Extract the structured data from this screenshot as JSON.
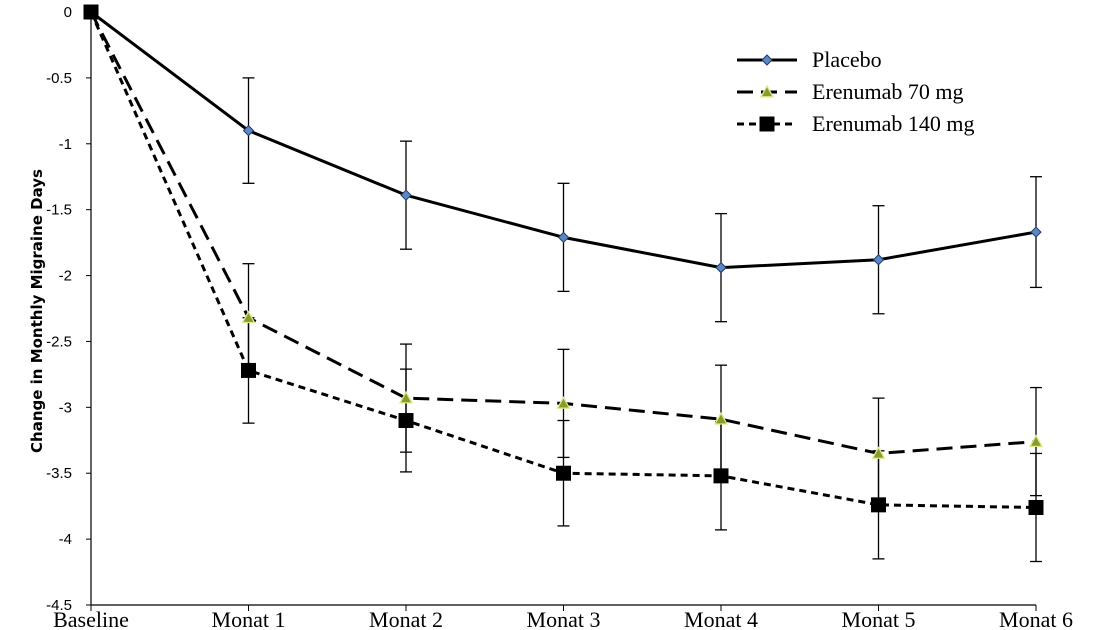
{
  "chart_data": {
    "type": "line",
    "title": "",
    "xlabel": "",
    "ylabel": "Change in Monthly Migraine Days",
    "categories": [
      "Baseline",
      "Monat 1",
      "Monat 2",
      "Monat 3",
      "Monat 4",
      "Monat 5",
      "Monat 6"
    ],
    "ylim": [
      -4.5,
      0
    ],
    "yticks": [
      0,
      -0.5,
      -1,
      -1.5,
      -2,
      -2.5,
      -3,
      -3.5,
      -4,
      -4.5
    ],
    "ytick_labels": [
      "0",
      "-0.5",
      "-1",
      "-1.5",
      "-2",
      "-2.5",
      "-3",
      "-3.5",
      "-4",
      "-4.5"
    ],
    "grid": false,
    "legend_position": "top-right",
    "series": [
      {
        "name": "Placebo",
        "marker": "diamond",
        "line_style": "solid",
        "marker_color": "#5b87c5",
        "line_color": "#000000",
        "values": [
          0,
          -0.9,
          -1.39,
          -1.71,
          -1.94,
          -1.88,
          -1.67
        ],
        "error": [
          0,
          0.4,
          0.41,
          0.41,
          0.41,
          0.41,
          0.42
        ]
      },
      {
        "name": "Erenumab 70 mg",
        "marker": "triangle",
        "line_style": "long-dash",
        "marker_color": "#8c9a2c",
        "line_color": "#000000",
        "values": [
          0,
          -2.32,
          -2.93,
          -2.97,
          -3.09,
          -3.35,
          -3.26
        ],
        "error": [
          0,
          0.41,
          0.41,
          0.41,
          0.41,
          0.42,
          0.41
        ]
      },
      {
        "name": "Erenumab 140 mg",
        "marker": "square",
        "line_style": "short-dash",
        "marker_color": "#000000",
        "line_color": "#000000",
        "values": [
          0,
          -2.72,
          -3.1,
          -3.5,
          -3.52,
          -3.74,
          -3.76
        ],
        "error": [
          0,
          0.4,
          0.39,
          0.4,
          0.41,
          0.41,
          0.41
        ]
      }
    ]
  }
}
